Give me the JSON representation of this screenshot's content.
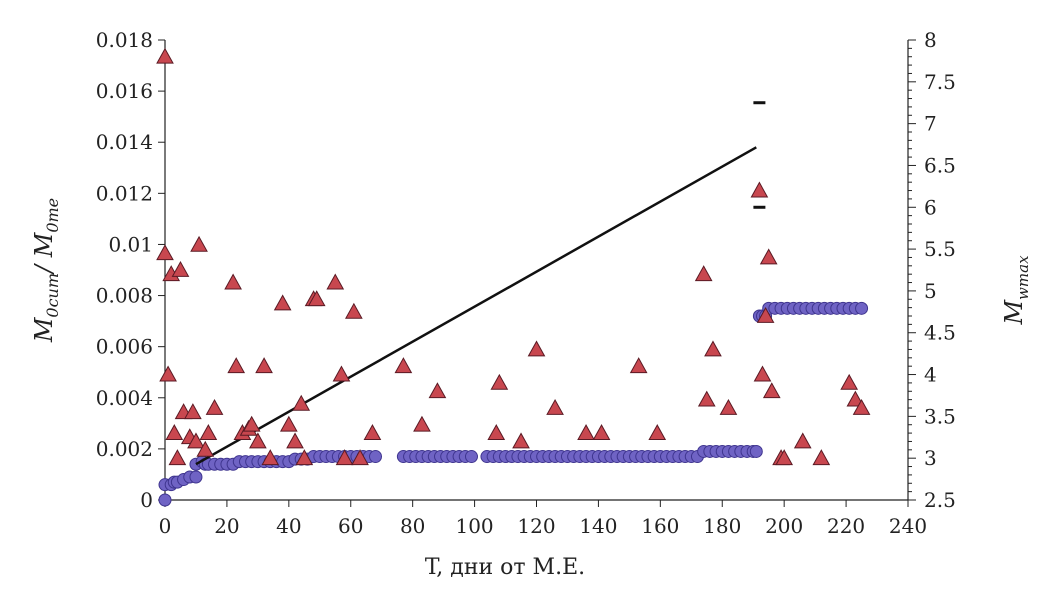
{
  "chart_data": {
    "type": "scatter",
    "xlabel": "T, дни от M.E.",
    "ylabel_left": "M0cum/ M0me",
    "ylabel_right": "Mwmax",
    "xlim": [
      0,
      240
    ],
    "ylim_left": [
      0,
      0.018
    ],
    "ylim_right": [
      2.5,
      8
    ],
    "x_ticks": [
      "0",
      "20",
      "40",
      "60",
      "80",
      "100",
      "120",
      "140",
      "160",
      "180",
      "200",
      "220",
      "240"
    ],
    "y_left_ticks": [
      "0",
      "0.002",
      "0.004",
      "0.006",
      "0.008",
      "0.01",
      "0.012",
      "0.014",
      "0.016",
      "0.018"
    ],
    "y_right_ticks": [
      "2.5",
      "3",
      "3.5",
      "4",
      "4.5",
      "5",
      "5.5",
      "6",
      "6.5",
      "7",
      "7.5",
      "8"
    ],
    "grid": false,
    "legend": "none",
    "colors": {
      "triangles": "#c8474f",
      "triangle_edge": "#5a1a24",
      "circles": "#6f63c4",
      "circle_edge": "#3f358f",
      "line": "#111111"
    },
    "series": [
      {
        "marker": "triangle",
        "axis": "right",
        "points": [
          [
            0,
            7.8
          ],
          [
            0,
            5.45
          ],
          [
            1,
            4.0
          ],
          [
            2,
            5.2
          ],
          [
            3,
            3.3
          ],
          [
            4,
            3.0
          ],
          [
            5,
            5.25
          ],
          [
            6,
            3.55
          ],
          [
            8,
            3.25
          ],
          [
            9,
            3.55
          ],
          [
            10,
            3.2
          ],
          [
            11,
            5.55
          ],
          [
            13,
            3.1
          ],
          [
            14,
            3.3
          ],
          [
            16,
            3.6
          ],
          [
            22,
            5.1
          ],
          [
            23,
            4.1
          ],
          [
            25,
            3.3
          ],
          [
            27,
            3.35
          ],
          [
            28,
            3.4
          ],
          [
            30,
            3.2
          ],
          [
            32,
            4.1
          ],
          [
            34,
            3.0
          ],
          [
            38,
            4.85
          ],
          [
            40,
            3.4
          ],
          [
            42,
            3.2
          ],
          [
            44,
            3.65
          ],
          [
            45,
            3.0
          ],
          [
            48,
            4.9
          ],
          [
            49,
            4.9
          ],
          [
            55,
            5.1
          ],
          [
            57,
            4.0
          ],
          [
            58,
            3.0
          ],
          [
            61,
            4.75
          ],
          [
            63,
            3.0
          ],
          [
            67,
            3.3
          ],
          [
            77,
            4.1
          ],
          [
            83,
            3.4
          ],
          [
            88,
            3.8
          ],
          [
            107,
            3.3
          ],
          [
            108,
            3.9
          ],
          [
            115,
            3.2
          ],
          [
            120,
            4.3
          ],
          [
            126,
            3.6
          ],
          [
            136,
            3.3
          ],
          [
            141,
            3.3
          ],
          [
            153,
            4.1
          ],
          [
            159,
            3.3
          ],
          [
            174,
            5.2
          ],
          [
            175,
            3.7
          ],
          [
            177,
            4.3
          ],
          [
            182,
            3.6
          ],
          [
            192,
            6.2
          ],
          [
            193,
            4.0
          ],
          [
            194,
            4.7
          ],
          [
            195,
            5.4
          ],
          [
            196,
            3.8
          ],
          [
            199,
            3.0
          ],
          [
            200,
            3.0
          ],
          [
            206,
            3.2
          ],
          [
            212,
            3.0
          ],
          [
            221,
            3.9
          ],
          [
            223,
            3.7
          ],
          [
            225,
            3.6
          ]
        ]
      },
      {
        "marker": "circle",
        "axis": "left",
        "points": [
          [
            0,
            0.0
          ],
          [
            0,
            0.0006
          ],
          [
            2,
            0.0006
          ],
          [
            3,
            0.0007
          ],
          [
            4,
            0.0007
          ],
          [
            6,
            0.0008
          ],
          [
            8,
            0.0009
          ],
          [
            10,
            0.0009
          ],
          [
            10,
            0.0014
          ],
          [
            12,
            0.0015
          ],
          [
            13,
            0.0014
          ],
          [
            14,
            0.0014
          ],
          [
            16,
            0.0014
          ],
          [
            18,
            0.0014
          ],
          [
            20,
            0.0014
          ],
          [
            22,
            0.0014
          ],
          [
            24,
            0.0015
          ],
          [
            26,
            0.0015
          ],
          [
            28,
            0.0015
          ],
          [
            30,
            0.0015
          ],
          [
            32,
            0.0015
          ],
          [
            34,
            0.0015
          ],
          [
            36,
            0.0015
          ],
          [
            38,
            0.0015
          ],
          [
            40,
            0.0015
          ],
          [
            42,
            0.0016
          ],
          [
            44,
            0.0016
          ],
          [
            46,
            0.0016
          ],
          [
            48,
            0.0017
          ],
          [
            50,
            0.0017
          ],
          [
            52,
            0.0017
          ],
          [
            54,
            0.0017
          ],
          [
            56,
            0.0017
          ],
          [
            58,
            0.0017
          ],
          [
            60,
            0.0017
          ],
          [
            62,
            0.0017
          ],
          [
            64,
            0.0017
          ],
          [
            66,
            0.0017
          ],
          [
            68,
            0.0017
          ],
          [
            77,
            0.0017
          ],
          [
            79,
            0.0017
          ],
          [
            81,
            0.0017
          ],
          [
            83,
            0.0017
          ],
          [
            85,
            0.0017
          ],
          [
            87,
            0.0017
          ],
          [
            89,
            0.0017
          ],
          [
            91,
            0.0017
          ],
          [
            93,
            0.0017
          ],
          [
            95,
            0.0017
          ],
          [
            97,
            0.0017
          ],
          [
            99,
            0.0017
          ],
          [
            104,
            0.0017
          ],
          [
            106,
            0.0017
          ],
          [
            108,
            0.0017
          ],
          [
            110,
            0.0017
          ],
          [
            112,
            0.0017
          ],
          [
            114,
            0.0017
          ],
          [
            116,
            0.0017
          ],
          [
            118,
            0.0017
          ],
          [
            120,
            0.0017
          ],
          [
            122,
            0.0017
          ],
          [
            124,
            0.0017
          ],
          [
            126,
            0.0017
          ],
          [
            128,
            0.0017
          ],
          [
            130,
            0.0017
          ],
          [
            132,
            0.0017
          ],
          [
            134,
            0.0017
          ],
          [
            136,
            0.0017
          ],
          [
            138,
            0.0017
          ],
          [
            140,
            0.0017
          ],
          [
            142,
            0.0017
          ],
          [
            144,
            0.0017
          ],
          [
            146,
            0.0017
          ],
          [
            148,
            0.0017
          ],
          [
            150,
            0.0017
          ],
          [
            152,
            0.0017
          ],
          [
            154,
            0.0017
          ],
          [
            156,
            0.0017
          ],
          [
            158,
            0.0017
          ],
          [
            160,
            0.0017
          ],
          [
            162,
            0.0017
          ],
          [
            164,
            0.0017
          ],
          [
            166,
            0.0017
          ],
          [
            168,
            0.0017
          ],
          [
            170,
            0.0017
          ],
          [
            172,
            0.0017
          ],
          [
            174,
            0.0019
          ],
          [
            176,
            0.0019
          ],
          [
            178,
            0.0019
          ],
          [
            180,
            0.0019
          ],
          [
            182,
            0.0019
          ],
          [
            184,
            0.0019
          ],
          [
            186,
            0.0019
          ],
          [
            188,
            0.0019
          ],
          [
            190,
            0.0019
          ],
          [
            191,
            0.0019
          ],
          [
            192,
            0.0072
          ],
          [
            193,
            0.0072
          ],
          [
            194,
            0.0072
          ],
          [
            195,
            0.0075
          ],
          [
            197,
            0.0075
          ],
          [
            199,
            0.0075
          ],
          [
            201,
            0.0075
          ],
          [
            203,
            0.0075
          ],
          [
            205,
            0.0075
          ],
          [
            207,
            0.0075
          ],
          [
            209,
            0.0075
          ],
          [
            211,
            0.0075
          ],
          [
            213,
            0.0075
          ],
          [
            215,
            0.0075
          ],
          [
            217,
            0.0075
          ],
          [
            219,
            0.0075
          ],
          [
            221,
            0.0075
          ],
          [
            223,
            0.0075
          ],
          [
            225,
            0.0075
          ]
        ]
      },
      {
        "marker": "line",
        "axis": "left",
        "points": [
          [
            10,
            0.0014
          ],
          [
            191,
            0.0138
          ]
        ]
      },
      {
        "marker": "dash",
        "axis": "right",
        "points": [
          [
            192,
            7.25
          ],
          [
            192,
            6.0
          ]
        ]
      }
    ]
  }
}
